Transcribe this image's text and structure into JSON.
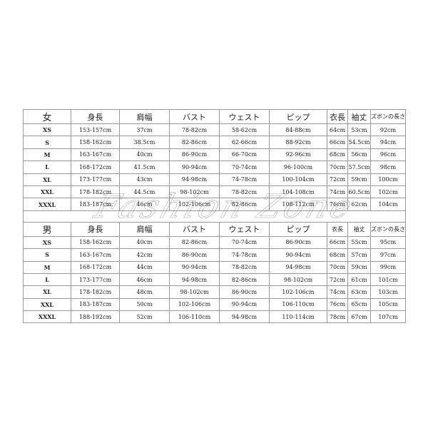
{
  "headers": [
    "身長",
    "肩幅",
    "バスト",
    "ウェスト",
    "ピップ",
    "衣長",
    "袖丈",
    "ズボンの長さ"
  ],
  "women": {
    "label": "女",
    "rows": [
      [
        "XS",
        "153-157cm",
        "37cm",
        "78-82cm",
        "58-62cm",
        "84-88cm",
        "64cm",
        "53cm",
        "92cm"
      ],
      [
        "S",
        "158-162cm",
        "38.5cm",
        "82-86cm",
        "62-66cm",
        "88-92cm",
        "66cm",
        "54.5cm",
        "94cm"
      ],
      [
        "M",
        "163-167cm",
        "40cm",
        "86-90cm",
        "66-70cm",
        "92-96cm",
        "68cm",
        "56cm",
        "96cm"
      ],
      [
        "L",
        "168-172cm",
        "41.5cm",
        "90-94cm",
        "70-74cm",
        "96-100cm",
        "70cm",
        "57.5cm",
        "98cm"
      ],
      [
        "XL",
        "173-177cm",
        "43cm",
        "94-98cm",
        "74-78cm",
        "100-104cm",
        "72cm",
        "59cm",
        "100cm"
      ],
      [
        "XXL",
        "178-182cm",
        "44.5cm",
        "98-102cm",
        "78-82cm",
        "104-108cm",
        "74cm",
        "60.5cm",
        "102cm"
      ],
      [
        "XXXL",
        "183-187cm",
        "46cm",
        "102-106cm",
        "82-86cm",
        "108-112cm",
        "76cm",
        "62cm",
        "104cm"
      ]
    ]
  },
  "men": {
    "label": "男",
    "rows": [
      [
        "XS",
        "158-162cm",
        "40cm",
        "82-86cm",
        "70-74cm",
        "86-90cm",
        "66cm",
        "55cm",
        "95cm"
      ],
      [
        "S",
        "163-167cm",
        "42cm",
        "86-90cm",
        "74-78cm",
        "90-94cm",
        "68cm",
        "57cm",
        "97cm"
      ],
      [
        "M",
        "168-172cm",
        "44cm",
        "90-94cm",
        "78-82cm",
        "94-98cm",
        "70cm",
        "59cm",
        "99cm"
      ],
      [
        "L",
        "173-177cm",
        "46cm",
        "94-98cm",
        "82-86cm",
        "98-102cm",
        "72cm",
        "61cm",
        "101cm"
      ],
      [
        "XL",
        "178-182cm",
        "48cm",
        "98-102cm",
        "86-90cm",
        "102-106cm",
        "74cm",
        "63cm",
        "103cm"
      ],
      [
        "XXL",
        "183-187cm",
        "50cm",
        "102-106cm",
        "90-94cm",
        "106-110cm",
        "76cm",
        "65cm",
        "105cm"
      ],
      [
        "XXXL",
        "188-192cm",
        "52cm",
        "106-110cm",
        "94-98cm",
        "110-114cm",
        "78cm",
        "67cm",
        "107cm"
      ]
    ]
  },
  "watermark": "Fashion Zone"
}
